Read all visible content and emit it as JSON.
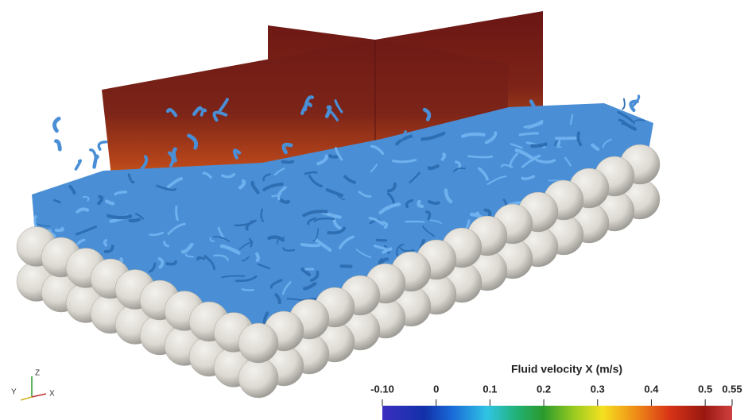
{
  "colorbar": {
    "title": "Fluid velocity X (m/s)",
    "range": [
      -0.1,
      0.55
    ],
    "ticks": [
      {
        "value": -0.1,
        "label": "-0.10"
      },
      0,
      0.1,
      0.2,
      0.3,
      0.4,
      0.5,
      0.55
    ]
  },
  "axes_triad": {
    "z": "Z",
    "y": "Y",
    "x": "X"
  }
}
